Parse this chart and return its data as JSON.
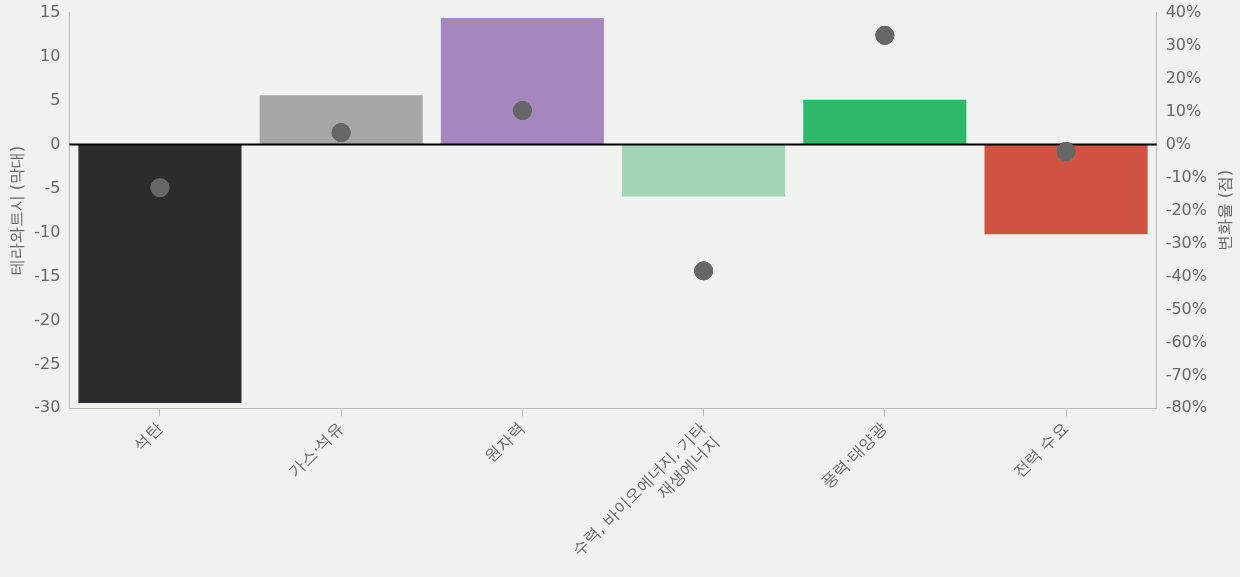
{
  "chart_data": {
    "type": "bar",
    "ylabel": "테라와트시 (막대)",
    "y2label": "변화율 (점)",
    "categories": [
      "석탄",
      "가스·석유",
      "원자력",
      "수력, 바이오에너지, 기타 재생에너지",
      "풍력·태양광",
      "전력 수요"
    ],
    "series": [
      {
        "colors": [
          "#2b2d2c",
          "#a6a6a6",
          "#a686bf",
          "#9fd4b4",
          "#2fb86a",
          "#d05240"
        ],
        "values": [
          -29.4,
          5.6,
          14.4,
          -5.9,
          5.1,
          -10.2
        ]
      },
      {
        "type": "scatter",
        "axis": "y2",
        "color": "#666666",
        "x": [
          "석탄",
          "가스·석유",
          "원자력",
          "수력, 바이오에너지, 기타 재생에너지",
          "풍력·태양광",
          "전력 수요"
        ],
        "values": [
          -13.1,
          3.6,
          10.3,
          -38.3,
          33.1,
          -2.1
        ]
      }
    ],
    "ylim": [
      -30,
      15
    ],
    "yticks": [
      -30,
      -25,
      -20,
      -15,
      -10,
      -5,
      0,
      5,
      10,
      15
    ],
    "y2lim": [
      -80,
      40
    ],
    "y2ticks": [
      {
        "value": -80,
        "label": "-80%"
      },
      {
        "value": -70,
        "label": "-70%"
      },
      {
        "value": -60,
        "label": "-60%"
      },
      {
        "value": -50,
        "label": "-50%"
      },
      {
        "value": -40,
        "label": "-40%"
      },
      {
        "value": -30,
        "label": "-30%"
      },
      {
        "value": -20,
        "label": "-20%"
      },
      {
        "value": -10,
        "label": "-10%"
      },
      {
        "value": 0,
        "label": "0%"
      },
      {
        "value": 10,
        "label": "10%"
      },
      {
        "value": 20,
        "label": "20%"
      },
      {
        "value": 30,
        "label": "30%"
      },
      {
        "value": 40,
        "label": "40%"
      }
    ],
    "ref_lines": [
      {
        "axis": "y",
        "value": 0,
        "color": "#000000"
      }
    ],
    "marker": "circle",
    "grid": false,
    "legend": false
  }
}
